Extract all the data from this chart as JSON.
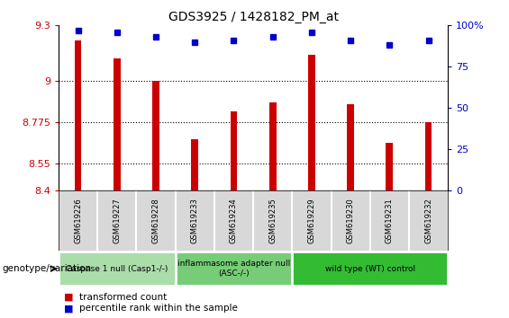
{
  "title": "GDS3925 / 1428182_PM_at",
  "samples": [
    "GSM619226",
    "GSM619227",
    "GSM619228",
    "GSM619233",
    "GSM619234",
    "GSM619235",
    "GSM619229",
    "GSM619230",
    "GSM619231",
    "GSM619232"
  ],
  "bar_values": [
    9.22,
    9.12,
    9.0,
    8.68,
    8.83,
    8.88,
    9.14,
    8.87,
    8.66,
    8.775
  ],
  "percentile_values": [
    97,
    96,
    93,
    90,
    91,
    93,
    96,
    91,
    88,
    91
  ],
  "ylim": [
    8.4,
    9.3
  ],
  "yticks": [
    8.4,
    8.55,
    8.775,
    9.0,
    9.3
  ],
  "ytick_labels": [
    "8.4",
    "8.55",
    "8.775",
    "9",
    "9.3"
  ],
  "right_yticks": [
    0,
    25,
    50,
    75,
    100
  ],
  "right_ytick_labels": [
    "0",
    "25",
    "50",
    "75",
    "100%"
  ],
  "bar_color": "#cc0000",
  "percentile_color": "#0000cc",
  "bar_width": 0.18,
  "groups": [
    {
      "label": "Caspase 1 null (Casp1-/-)",
      "start": 0,
      "end": 3,
      "color": "#aaddaa"
    },
    {
      "label": "inflammasome adapter null\n(ASC-/-)",
      "start": 3,
      "end": 6,
      "color": "#77cc77"
    },
    {
      "label": "wild type (WT) control",
      "start": 6,
      "end": 10,
      "color": "#33bb33"
    }
  ],
  "legend_items": [
    {
      "label": "transformed count",
      "color": "#cc0000"
    },
    {
      "label": "percentile rank within the sample",
      "color": "#0000cc"
    }
  ],
  "xlabel_left": "genotype/variation",
  "plot_bg_color": "#ffffff",
  "sample_bg_color": "#d8d8d8",
  "sample_border_color": "#ffffff"
}
